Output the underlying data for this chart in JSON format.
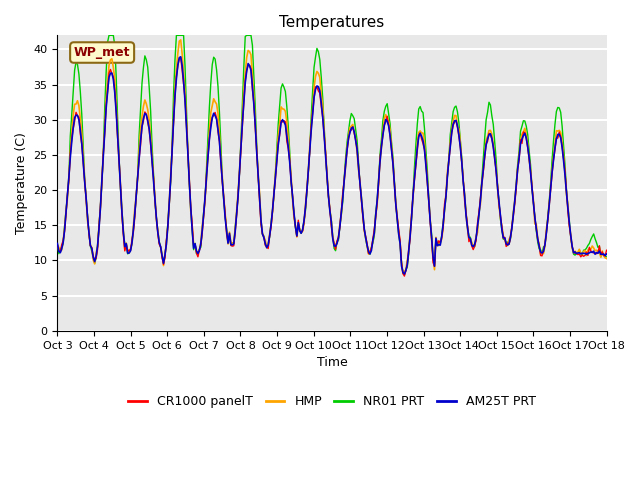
{
  "title": "Temperatures",
  "xlabel": "Time",
  "ylabel": "Temperature (C)",
  "ylim": [
    0,
    42
  ],
  "yticks": [
    0,
    5,
    10,
    15,
    20,
    25,
    30,
    35,
    40
  ],
  "x_labels": [
    "Oct 3",
    "Oct 4",
    "Oct 5",
    "Oct 6",
    "Oct 7",
    "Oct 8",
    "Oct 9",
    "Oct 10",
    "Oct 11",
    "Oct 12",
    "Oct 13",
    "Oct 14",
    "Oct 15",
    "Oct 16",
    "Oct 17",
    "Oct 18"
  ],
  "annotation_text": "WP_met",
  "annotation_color": "#8B0000",
  "annotation_bg": "#FFFACD",
  "line_colors": {
    "CR1000": "#FF0000",
    "HMP": "#FFA500",
    "NR01": "#00CC00",
    "AM25T": "#0000CC"
  },
  "legend_labels": [
    "CR1000 panelT",
    "HMP",
    "NR01 PRT",
    "AM25T PRT"
  ],
  "bg_color": "#E8E8E8",
  "grid_color": "#FFFFFF"
}
